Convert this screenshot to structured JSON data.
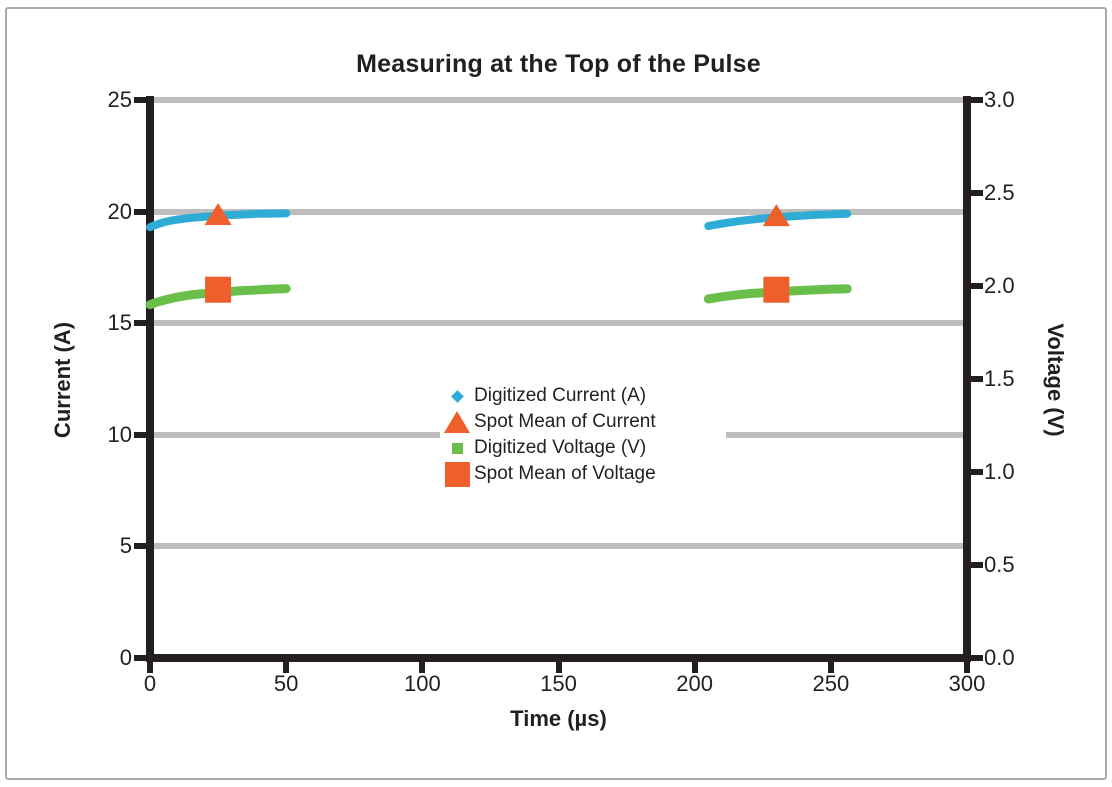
{
  "figure": {
    "border_color": "#ABABAB",
    "background": "#FFFFFF",
    "axis_color": "#231F20",
    "grid_color": "#BEBEBE"
  },
  "legend": {
    "items": [
      {
        "label": "Digitized Current (A)",
        "marker": "diamond",
        "color": "#2FACD6"
      },
      {
        "label": "Spot Mean of Current",
        "marker": "triangle",
        "color": "#EE5F2B"
      },
      {
        "label": "Digitized Voltage (V)",
        "marker": "square-small",
        "color": "#6ABF4B"
      },
      {
        "label": "Spot Mean of Voltage",
        "marker": "square-large",
        "color": "#EE5F2B"
      }
    ]
  },
  "chart_data": {
    "type": "scatter",
    "title": "Measuring at the Top of the Pulse",
    "xlabel": "Time (µs)",
    "ylabel_left": "Current (A)",
    "ylabel_right": "Voltage (V)",
    "xlim": [
      0,
      300
    ],
    "x_ticks": [
      "0",
      "50",
      "100",
      "150",
      "200",
      "250",
      "300"
    ],
    "ylim_left": [
      0,
      25
    ],
    "y_ticks_left": [
      "0",
      "5",
      "10",
      "15",
      "20",
      "25"
    ],
    "ylim_right": [
      0.0,
      3.0
    ],
    "y_ticks_right": [
      "0.0",
      "0.5",
      "1.0",
      "1.5",
      "2.0",
      "2.5",
      "3.0"
    ],
    "grid": "horizontal-only",
    "legend_position": "center",
    "series": [
      {
        "name": "Digitized Current (A)",
        "axis": "left",
        "style": "line",
        "marker": "diamond",
        "color": "#2FACD6",
        "line_width": 8,
        "segments": [
          [
            [
              0,
              19.3
            ],
            [
              2,
              19.4
            ],
            [
              4,
              19.48
            ],
            [
              6,
              19.55
            ],
            [
              8,
              19.6
            ],
            [
              10,
              19.64
            ],
            [
              13,
              19.69
            ],
            [
              16,
              19.73
            ],
            [
              19,
              19.76
            ],
            [
              22,
              19.79
            ],
            [
              25,
              19.82
            ],
            [
              28,
              19.84
            ],
            [
              32,
              19.86
            ],
            [
              36,
              19.88
            ],
            [
              40,
              19.9
            ],
            [
              45,
              19.91
            ],
            [
              50,
              19.92
            ]
          ],
          [
            [
              205,
              19.35
            ],
            [
              208,
              19.42
            ],
            [
              212,
              19.5
            ],
            [
              216,
              19.57
            ],
            [
              220,
              19.63
            ],
            [
              224,
              19.68
            ],
            [
              228,
              19.72
            ],
            [
              232,
              19.76
            ],
            [
              236,
              19.79
            ],
            [
              240,
              19.82
            ],
            [
              244,
              19.85
            ],
            [
              248,
              19.87
            ],
            [
              252,
              19.89
            ],
            [
              256,
              19.9
            ]
          ]
        ]
      },
      {
        "name": "Spot Mean of Current",
        "axis": "left",
        "style": "markers",
        "marker": "triangle",
        "color": "#EE5F2B",
        "size": 26,
        "points": [
          [
            25,
            19.85
          ],
          [
            230,
            19.8
          ]
        ]
      },
      {
        "name": "Digitized Voltage (V)",
        "axis": "right",
        "style": "line",
        "marker": "square",
        "color": "#6ABF4B",
        "line_width": 9,
        "segments": [
          [
            [
              0,
              1.9
            ],
            [
              3,
              1.915
            ],
            [
              6,
              1.927
            ],
            [
              9,
              1.937
            ],
            [
              12,
              1.945
            ],
            [
              15,
              1.952
            ],
            [
              18,
              1.957
            ],
            [
              21,
              1.961
            ],
            [
              24,
              1.965
            ],
            [
              27,
              1.968
            ],
            [
              30,
              1.971
            ],
            [
              34,
              1.975
            ],
            [
              38,
              1.978
            ],
            [
              42,
              1.981
            ],
            [
              46,
              1.984
            ],
            [
              50,
              1.986
            ]
          ],
          [
            [
              205,
              1.93
            ],
            [
              209,
              1.94
            ],
            [
              213,
              1.948
            ],
            [
              217,
              1.955
            ],
            [
              221,
              1.96
            ],
            [
              225,
              1.964
            ],
            [
              229,
              1.968
            ],
            [
              233,
              1.971
            ],
            [
              237,
              1.974
            ],
            [
              241,
              1.977
            ],
            [
              245,
              1.98
            ],
            [
              249,
              1.982
            ],
            [
              253,
              1.984
            ],
            [
              256,
              1.985
            ]
          ]
        ]
      },
      {
        "name": "Spot Mean of Voltage",
        "axis": "right",
        "style": "markers",
        "marker": "square",
        "color": "#EE5F2B",
        "size": 26,
        "points": [
          [
            25,
            1.98
          ],
          [
            230,
            1.98
          ]
        ]
      }
    ]
  }
}
